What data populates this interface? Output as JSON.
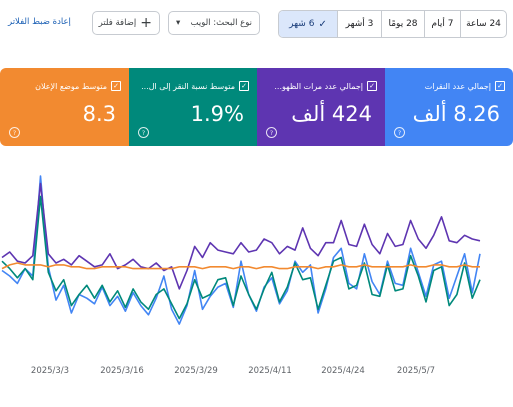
{
  "toolbar": {
    "ranges": [
      {
        "label": "24 ساعة",
        "selected": false
      },
      {
        "label": "7 أيام",
        "selected": false
      },
      {
        "label": "28 يومًا",
        "selected": false
      },
      {
        "label": "3 أشهر",
        "selected": false
      },
      {
        "label": "6 شهر",
        "selected": true
      }
    ],
    "sort_label": "نوع البحث: الويب",
    "add_filter_label": "إضافة فلتر",
    "reset_label": "إعادة ضبط الفلاتر"
  },
  "cards": [
    {
      "label": "إجمالي عدد النقرات",
      "value": "8.26 ألف",
      "color": "#4285f4"
    },
    {
      "label": "إجمالي عدد مرات الظهو...",
      "value": "424 ألف",
      "color": "#5e35b1"
    },
    {
      "label": "متوسط نسبة النقر إلى ال...",
      "value": "1.9%",
      "color": "#00897b"
    },
    {
      "label": "متوسط موضع الإعلان",
      "value": "8.3",
      "color": "#f28a30"
    }
  ],
  "chart_data": {
    "type": "line",
    "x_tick_labels": [
      "2025/3/3",
      "2025/3/16",
      "2025/3/29",
      "2025/4/11",
      "2025/4/24",
      "2025/5/7"
    ],
    "series": [
      {
        "color": "#4285f4",
        "values": [
          43,
          40,
          36,
          44,
          40,
          94,
          45,
          27,
          35,
          20,
          30,
          28,
          25,
          34,
          24,
          29,
          21,
          31,
          24,
          19,
          28,
          40,
          22,
          14,
          24,
          43,
          22,
          29,
          34,
          36,
          23,
          48,
          30,
          21,
          34,
          39,
          25,
          32,
          48,
          42,
          46,
          20,
          33,
          50,
          55,
          36,
          33,
          52,
          37,
          30,
          48,
          36,
          35,
          55,
          42,
          29,
          46,
          48,
          28,
          40,
          52,
          31,
          52
        ]
      },
      {
        "color": "#5e35b1",
        "values": [
          50,
          53,
          48,
          47,
          51,
          90,
          52,
          47,
          49,
          46,
          51,
          48,
          45,
          46,
          52,
          44,
          46,
          49,
          45,
          44,
          47,
          43,
          45,
          33,
          43,
          56,
          50,
          58,
          54,
          53,
          52,
          58,
          53,
          54,
          60,
          58,
          52,
          56,
          54,
          66,
          55,
          51,
          58,
          58,
          70,
          57,
          56,
          68,
          57,
          52,
          63,
          56,
          57,
          70,
          60,
          55,
          62,
          72,
          59,
          58,
          62,
          60,
          59
        ]
      },
      {
        "color": "#00897b",
        "values": [
          48,
          44,
          39,
          44,
          38,
          83,
          42,
          32,
          38,
          24,
          30,
          35,
          28,
          35,
          26,
          32,
          23,
          33,
          26,
          22,
          30,
          33,
          25,
          17,
          25,
          38,
          28,
          30,
          38,
          39,
          24,
          40,
          30,
          22,
          33,
          42,
          26,
          34,
          47,
          38,
          39,
          22,
          35,
          48,
          50,
          33,
          35,
          47,
          30,
          29,
          46,
          32,
          33,
          51,
          40,
          26,
          43,
          45,
          24,
          30,
          47,
          28,
          38
        ]
      },
      {
        "color": "#f28a30",
        "values": [
          44,
          46,
          47,
          46,
          46,
          46,
          45,
          46,
          46,
          45,
          45,
          44,
          44,
          45,
          45,
          45,
          45,
          44,
          44,
          44,
          44,
          44,
          44,
          45,
          45,
          45,
          44,
          45,
          45,
          45,
          44,
          45,
          45,
          44,
          45,
          45,
          44,
          44,
          45,
          45,
          45,
          44,
          45,
          45,
          46,
          45,
          45,
          46,
          45,
          45,
          45,
          45,
          45,
          46,
          45,
          45,
          46,
          46,
          45,
          45,
          46,
          45,
          45
        ]
      }
    ]
  }
}
